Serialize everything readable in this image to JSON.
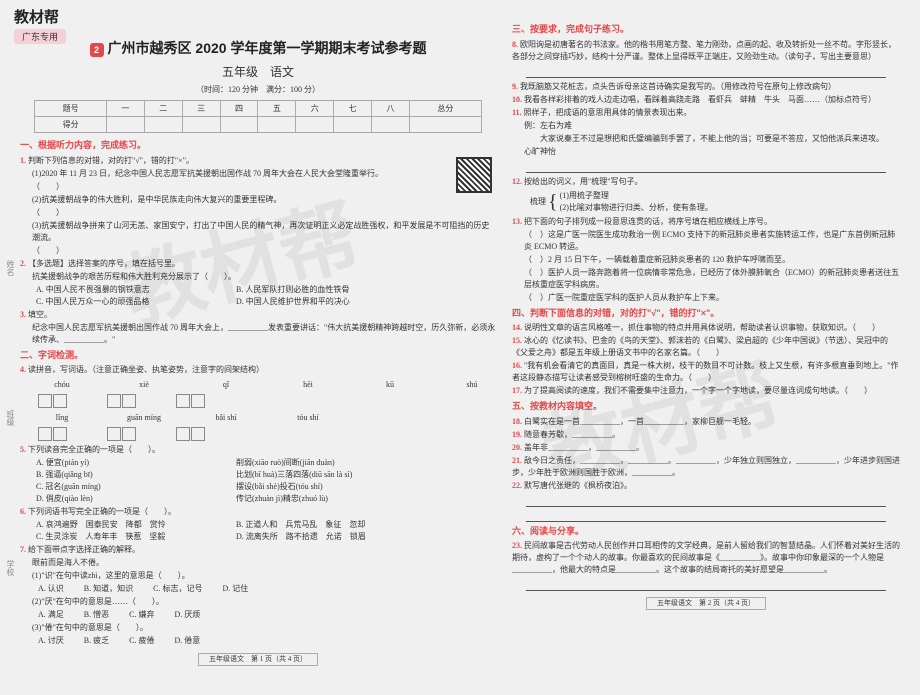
{
  "brand": {
    "name": "教材帮",
    "pill": "广东专用",
    "badge": "2"
  },
  "header": {
    "title": "广州市越秀区 2020 学年度第一学期期末考试参考题",
    "subtitle": "五年级　语文",
    "meta": "（时间：120 分钟　满分：100 分）"
  },
  "score": {
    "cols": [
      "题号",
      "一",
      "二",
      "三",
      "四",
      "五",
      "六",
      "七",
      "八",
      "总分"
    ],
    "row2": "得分"
  },
  "s1": {
    "head": "一、根据听力内容，完成练习。",
    "q1": "判断下列信息的对错，对的打\"√\"，错的打\"×\"。",
    "q1a": "(1)2020 年 11 月 23 日，纪念中国人民志愿军抗美援朝出国作战 70 周年大会在人民大会堂隆重举行。",
    "q1b": "(2)抗美援朝战争的伟大胜利，是中华民族走向伟大复兴的重要里程碑。",
    "q1c": "(3)抗美援朝战争拼来了山河无恙、家国安宁，打出了中国人民的精气神，再次证明正义必定战胜强权，和平发展是不可阻挡的历史潮流。",
    "q2": "【多选题】选择答案的序号，填在括号里。",
    "q2t": "抗美援朝战争的艰苦历程和伟大胜利充分展示了（　　）。",
    "q2a": "A. 中国人民不畏强暴的钢铁意志",
    "q2b": "B. 人民军队打则必胜的血性铁骨",
    "q2c": "C. 中国人民万众一心的顽强品格",
    "q2d": "D. 中国人民维护世界和平的决心",
    "q3": "填空。",
    "q3t": "纪念中国人民志愿军抗美援朝出国作战 70 周年大会上，__________发表重要讲话：\"伟大抗美援朝精神跨越时空，历久弥新，必须永续传承、__________。\""
  },
  "s2": {
    "head": "二、字词检测。",
    "q4": "读拼音，写词语。（注意正确坐姿、执笔姿势，注意字的间架结构）",
    "py": [
      [
        "chóu",
        "xiè",
        "",
        "qǐ",
        "hēi",
        "",
        "kū",
        "shú"
      ],
      [
        "lǐng",
        "",
        "guān míng",
        "",
        "bǎi shí",
        "",
        "tóu shí",
        ""
      ]
    ],
    "q5": "下列读音完全正确的一项是（　　）。",
    "q5r": [
      [
        "A. 便宜(pián yí)",
        "削弱(xiāo ruò)",
        "间断(jiān duàn)"
      ],
      [
        "B. 强逼(qiǎng bī)",
        "比划(bǐ huà)",
        "三落四落(diū sān là sì)"
      ],
      [
        "C. 冠名(guān míng)",
        "摆设(bǎi shè)",
        "投石(tóu shí)"
      ],
      [
        "D. 俏皮(qiào lèn)",
        "传记(zhuàn jì)",
        "精忠(zhuó lù)"
      ]
    ],
    "q6": "下列词语书写完全正确的一项是（　　）。",
    "q6r": [
      [
        "A. 哀鸿遍野　国泰民安　降都　赏怜",
        "B. 正道人和　兵荒马乱　象征　忽却"
      ],
      [
        "C. 生灵涂炭　人寿年丰　筷惹　坚毅",
        "D. 流离失所　路不拾遗　允诺　锁眉"
      ]
    ],
    "q7": "给下面带点字选择正确的解释。",
    "q7a": "眼前而是海人不倦。",
    "q7a1": "(1)\"识\"在句中读zhì，这里的意思是（　　）。",
    "q7a1c": [
      "A. 认识",
      "B. 知道，知识",
      "C. 标志，记号",
      "D. 记住"
    ],
    "q7a2": "(2)\"厌\"在句中的意思是……（　　）。",
    "q7a2c": [
      "A. 满足",
      "B. 憎恶",
      "C. 嫌弃",
      "D. 厌烦"
    ],
    "q7b": "(3)\"倦\"在句中的意思是（　　）。",
    "q7bc": [
      "A. 讨厌",
      "B. 疲乏",
      "C. 疲倦",
      "D. 倦意"
    ]
  },
  "s3": {
    "head": "三、按要求，完成句子练习。",
    "q8": "欧阳询是初唐著名的书法家。他的楷书用笔方整、笔力刚劲，点画的起、收及转折处一丝不苟。字形竖长，各部分之间穿插巧妙，结构十分严谨。整体上显得既平正端庄，又险劲生动。（读句子，写出主要意思）",
    "q9": "我既脑筋又花桩志，点头告诉母亲这首诗确实是我写的。（用修改符号在原句上修改病句）",
    "q10": "我看各样彩排着的戏人边走边唱，看踩着高跷走路　看虾兵　蚌精　牛头　马面……（加标点符号）",
    "q11": "照样子，把成语的意思用具体的情景表现出来。",
    "q11e": "例：左右为难",
    "q11t": "　　大家说秦王不过是想把和氏璧编骗到手罢了，不能上他的当；可要是不答应，又怕他派兵来进攻。",
    "q11b": "心旷神怡",
    "q12": "按给出的词义，用\"梳理\"写句子。",
    "q12a": "(1)用梳子整理",
    "q12b": "(2)比喻对事物进行归类、分析，使有条理。",
    "q12w": "梳理",
    "q13": "把下面的句子排列成一段意思连贯的话，将序号填在相应横线上序号。",
    "q13a": "（　）这是广医一院医生成功救治一例 ECMO 支持下的新冠肺炎患者实施转运工作，也是广东首例新冠肺炎 ECMO 转运。",
    "q13b": "（　）2 月 15 日下午，一辆载着重症新冠肺炎患者的 120 救护车呼啸而至。",
    "q13c": "（　）医护人员一路奔跑着将一位病情非常危急，已经历了体外膜肺氧合（ECMO）的新冠肺炎患者送往五层核重症医学科病房。",
    "q13d": "（　）广医一院重症医学科的医护人员从救护车上下来。"
  },
  "s4": {
    "head": "四、判断下面信息的对错，对的打\"√\"，错的打\"×\"。",
    "q14": "说明性文章的语言风格唯一，抓住事物的特点并用具体说明，帮助读者认识事物，获取知识。",
    "q15": "冰心的《忆读书》、巴金的《鸟的天堂》、郭沫若的《白鹭》、梁启超的《少年中国说》（节选）、吴冠中的《父爱之舟》都是五年级上册语文书中的名家名篇。",
    "q16": "\"我有机会看清它的真面目，真是一株大树，枝干的数目不可计数。枝上又生根，有许多根直垂到地上。\"作者这段静态描写让读者感受到榕树旺盛的生命力。",
    "q17": "为了提高阅读的速度，我们不需要集中注意力，一个字一个字地读，要尽量连词成句地读。"
  },
  "s5": {
    "head": "五、按教材内容填空。",
    "q18": "白鹭实在是一首__________，一首__________，家柳巨舰一毛轻。",
    "q19": "随意春芳歇，__________。",
    "q20": "盖年非__________，__________。",
    "q21": "敌今日之责任，__________，__________。__________，少年独立则国独立，__________，少年进步则国进步，少年胜于欧洲则国胜于欧洲，__________。",
    "q22": "默写唐代张继的《枫桥夜泊》。"
  },
  "s6": {
    "head": "六、阅读与分享。",
    "q23": "民间故事是古代劳动人民创作并口耳相传的文学经典，是前人留给我们的智慧结晶。人们怀着对美好生活的期待，虚构了一个个动人的故事。你最喜欢的民间故事是《__________》。故事中你印象最深的一个人物是__________，他最大的特点是__________。这个故事的结局寄托的美好愿望是__________。"
  },
  "footer": {
    "p1": "五年级语文　第 1 页（共 4 页）",
    "p2": "五年级语文　第 2 页（共 4 页）"
  },
  "vert": {
    "a": "姓名",
    "b": "班级",
    "c": "学校"
  }
}
